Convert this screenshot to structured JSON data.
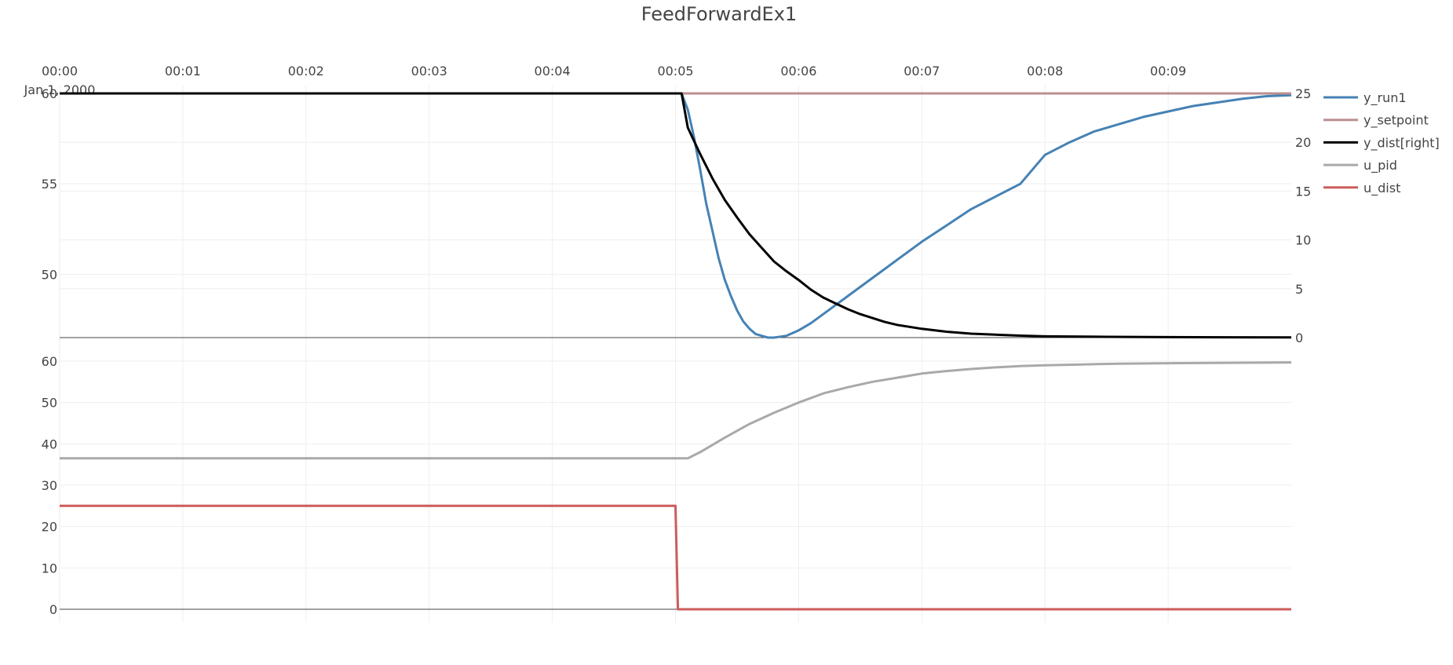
{
  "chart_data": {
    "type": "line",
    "title": "FeedForwardEx1",
    "x_tick_labels": [
      "00:00",
      "00:01",
      "00:02",
      "00:03",
      "00:04",
      "00:05",
      "00:06",
      "00:07",
      "00:08",
      "00:09"
    ],
    "x_date_label": "Jan 1, 2000",
    "x_ticks_min": [
      0,
      1,
      2,
      3,
      4,
      5,
      6,
      7,
      8,
      9
    ],
    "xlim_min": [
      0,
      10
    ],
    "legend_position": "right",
    "show_grid": true,
    "panels": [
      {
        "name": "top",
        "y_left_ticks": [
          50,
          55,
          60
        ],
        "y_left_range": [
          46.5,
          60
        ],
        "y_right_ticks": [
          0,
          5,
          10,
          15,
          20,
          25
        ],
        "y_right_range": [
          0,
          25
        ]
      },
      {
        "name": "bottom",
        "y_ticks": [
          0,
          10,
          20,
          30,
          40,
          50,
          60
        ],
        "y_range": [
          0,
          60
        ]
      }
    ],
    "series": [
      {
        "name": "y_run1",
        "panel": "top",
        "axis": "left",
        "color": "#4682b4",
        "x": [
          0,
          5.05,
          5.1,
          5.15,
          5.2,
          5.25,
          5.3,
          5.35,
          5.4,
          5.45,
          5.5,
          5.55,
          5.6,
          5.65,
          5.7,
          5.75,
          5.8,
          5.85,
          5.9,
          6.0,
          6.1,
          6.2,
          6.3,
          6.4,
          6.5,
          6.6,
          6.7,
          6.8,
          6.9,
          7.0,
          7.2,
          7.4,
          7.6,
          7.8,
          8.0,
          8.2,
          8.4,
          8.6,
          8.8,
          9.0,
          9.2,
          9.4,
          9.6,
          9.8,
          10.0
        ],
        "y": [
          60,
          60,
          59.1,
          57.6,
          55.8,
          53.9,
          52.4,
          50.9,
          49.7,
          48.8,
          48.0,
          47.4,
          47.0,
          46.7,
          46.6,
          46.5,
          46.5,
          46.55,
          46.6,
          46.9,
          47.3,
          47.8,
          48.3,
          48.8,
          49.3,
          49.8,
          50.3,
          50.8,
          51.3,
          51.8,
          52.7,
          53.6,
          54.3,
          55.0,
          56.6,
          57.3,
          57.9,
          58.3,
          58.7,
          59.0,
          59.3,
          59.5,
          59.7,
          59.85,
          59.9
        ]
      },
      {
        "name": "y_setpoint",
        "panel": "top",
        "axis": "left",
        "color": "#bc8f8f",
        "x": [
          0,
          10
        ],
        "y": [
          60,
          60
        ]
      },
      {
        "name": "y_dist[right]",
        "panel": "top",
        "axis": "right",
        "color": "#000000",
        "x": [
          0,
          5.05,
          5.1,
          5.2,
          5.3,
          5.4,
          5.5,
          5.6,
          5.7,
          5.8,
          5.9,
          6.0,
          6.1,
          6.2,
          6.3,
          6.4,
          6.5,
          6.6,
          6.7,
          6.8,
          6.9,
          7.0,
          7.2,
          7.4,
          7.6,
          7.8,
          8.0,
          8.5,
          9.0,
          9.5,
          10.0
        ],
        "y": [
          25,
          25,
          21.5,
          18.8,
          16.3,
          14.1,
          12.3,
          10.6,
          9.2,
          7.8,
          6.8,
          5.9,
          4.9,
          4.1,
          3.5,
          2.9,
          2.4,
          2.0,
          1.6,
          1.3,
          1.1,
          0.9,
          0.6,
          0.4,
          0.3,
          0.2,
          0.13,
          0.08,
          0.05,
          0.03,
          0.02
        ]
      },
      {
        "name": "u_pid",
        "panel": "bottom",
        "axis": "left",
        "color": "#a9a9a9",
        "x": [
          0,
          5.1,
          5.2,
          5.4,
          5.6,
          5.8,
          6.0,
          6.2,
          6.4,
          6.6,
          6.8,
          7.0,
          7.2,
          7.4,
          7.6,
          7.8,
          8.0,
          8.3,
          8.6,
          9.0,
          9.5,
          10.0
        ],
        "y": [
          36.5,
          36.5,
          38.0,
          41.5,
          44.8,
          47.5,
          50.0,
          52.2,
          53.7,
          55.0,
          56.0,
          57.0,
          57.6,
          58.1,
          58.5,
          58.8,
          59.0,
          59.2,
          59.4,
          59.5,
          59.6,
          59.7
        ]
      },
      {
        "name": "u_dist",
        "panel": "bottom",
        "axis": "left",
        "color": "#cd5c5c",
        "x": [
          0,
          5.0,
          5.02,
          10.0
        ],
        "y": [
          25,
          25,
          0,
          0
        ]
      }
    ]
  }
}
